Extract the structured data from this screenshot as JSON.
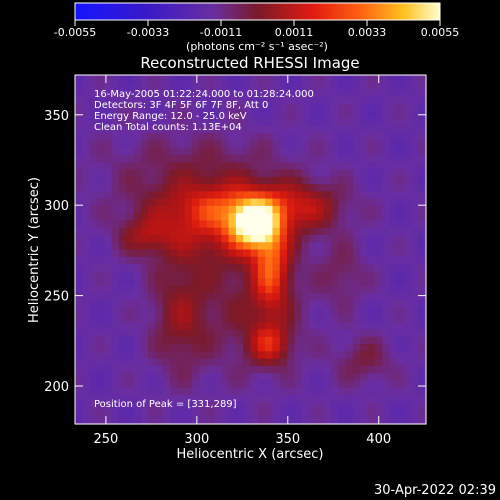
{
  "footer_timestamp": "30-Apr-2022 02:39",
  "chart_data": {
    "type": "heatmap",
    "title": "Reconstructed RHESSI Image",
    "xlabel": "Heliocentric X (arcsec)",
    "ylabel": "Heliocentric Y (arcsec)",
    "xlim": [
      233,
      426
    ],
    "ylim": [
      179,
      372
    ],
    "xticks": [
      250,
      300,
      350,
      400
    ],
    "yticks": [
      200,
      250,
      300,
      350
    ],
    "colorbar": {
      "range": [
        -0.0055,
        0.0055
      ],
      "ticks": [
        "-0.0055",
        "-0.0033",
        "-0.0011",
        "0.0011",
        "0.0033",
        "0.0055"
      ],
      "unit_label": "(photons cm⁻² s⁻¹ asec⁻²)"
    },
    "colors": {
      "background": "#000000",
      "colormap": [
        "#1414ff",
        "#4a1e8c",
        "#6e2f9e",
        "#7a1a2a",
        "#e01a10",
        "#ff6010",
        "#ffc020",
        "#ffff80",
        "#ffffff"
      ]
    },
    "annotations": [
      "16-May-2005 01:22:24.000 to 01:28:24.000",
      "Detectors: 3F 4F 5F 6F 7F 8F, Att 0",
      "Energy Range: 12.0 - 25.0 keV",
      "Clean     Total counts: 1.13E+04"
    ],
    "peak_label": "Position of Peak = [331,289]",
    "peak_position": [
      331,
      289
    ],
    "sources": [
      {
        "x": 331,
        "y": 289,
        "sigma_x": 9,
        "sigma_y": 9,
        "amp": 0.0055
      },
      {
        "x": 326,
        "y": 300,
        "sigma_x": 30,
        "sigma_y": 9,
        "amp": 0.0022
      },
      {
        "x": 308,
        "y": 288,
        "sigma_x": 26,
        "sigma_y": 14,
        "amp": 0.0024
      },
      {
        "x": 341,
        "y": 266,
        "sigma_x": 7,
        "sigma_y": 18,
        "amp": 0.0034
      },
      {
        "x": 272,
        "y": 283,
        "sigma_x": 10,
        "sigma_y": 7,
        "amp": 0.0016
      },
      {
        "x": 291,
        "y": 239,
        "sigma_x": 11,
        "sigma_y": 22,
        "amp": 0.0018
      },
      {
        "x": 340,
        "y": 223,
        "sigma_x": 8,
        "sigma_y": 8,
        "amp": 0.0026
      },
      {
        "x": 330,
        "y": 245,
        "sigma_x": 20,
        "sigma_y": 25,
        "amp": 0.0013
      },
      {
        "x": 360,
        "y": 298,
        "sigma_x": 14,
        "sigma_y": 10,
        "amp": 0.0014
      },
      {
        "x": 392,
        "y": 214,
        "sigma_x": 11,
        "sigma_y": 9,
        "amp": 0.0012
      },
      {
        "x": 300,
        "y": 320,
        "sigma_x": 35,
        "sigma_y": 14,
        "amp": 0.0011
      },
      {
        "x": 380,
        "y": 262,
        "sigma_x": 9,
        "sigma_y": 12,
        "amp": 0.001
      }
    ],
    "baseline": -0.0015
  }
}
